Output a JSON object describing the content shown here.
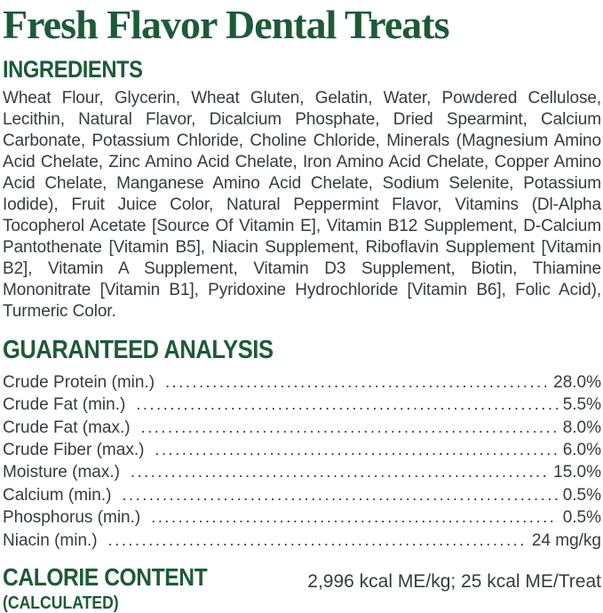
{
  "colors": {
    "heading_green": "#1d5b38",
    "body_text": "#363c38"
  },
  "header": {
    "title": "Fresh Flavor Dental Treats"
  },
  "ingredients": {
    "heading": "INGREDIENTS",
    "text": "Wheat Flour, Glycerin, Wheat Gluten, Gelatin, Water, Powdered Cellulose, Lecithin, Natural Flavor, Dicalcium Phosphate, Dried Spearmint, Calcium Carbonate, Potassium Chloride, Choline Chloride, Minerals (Magnesium Amino Acid Chelate, Zinc Amino Acid Chelate, Iron Amino Acid Chelate, Copper Amino Acid Chelate, Manganese Amino Acid Chelate, Sodium Selenite, Potassium Iodide), Fruit Juice Color, Natural Peppermint Flavor, Vitamins (Dl-Alpha Tocopherol Acetate [Source Of Vitamin E], Vitamin B12 Supplement, D-Calcium Pantothenate [Vitamin B5], Niacin Supplement, Riboflavin Supplement [Vitamin B2], Vitamin A Supplement, Vitamin D3 Supplement, Biotin, Thiamine Mononitrate [Vitamin B1], Pyridoxine Hydrochloride [Vitamin B6], Folic Acid), Turmeric Color."
  },
  "guaranteed_analysis": {
    "heading": "GUARANTEED ANALYSIS",
    "rows": [
      {
        "label": "Crude Protein (min.)",
        "value": "28.0%"
      },
      {
        "label": "Crude Fat (min.)",
        "value": "5.5%"
      },
      {
        "label": "Crude Fat (max.)",
        "value": "8.0%"
      },
      {
        "label": "Crude Fiber (max.)",
        "value": "6.0%"
      },
      {
        "label": "Moisture (max.)",
        "value": "15.0%"
      },
      {
        "label": "Calcium (min.)",
        "value": "0.5%"
      },
      {
        "label": "Phosphorus (min.)",
        "value": "0.5%"
      },
      {
        "label": "Niacin (min.)",
        "value": "24 mg/kg"
      }
    ]
  },
  "calorie_content": {
    "heading": "CALORIE CONTENT",
    "subheading": "(CALCULATED)",
    "value": "2,996 kcal ME/kg; 25 kcal ME/Treat"
  }
}
